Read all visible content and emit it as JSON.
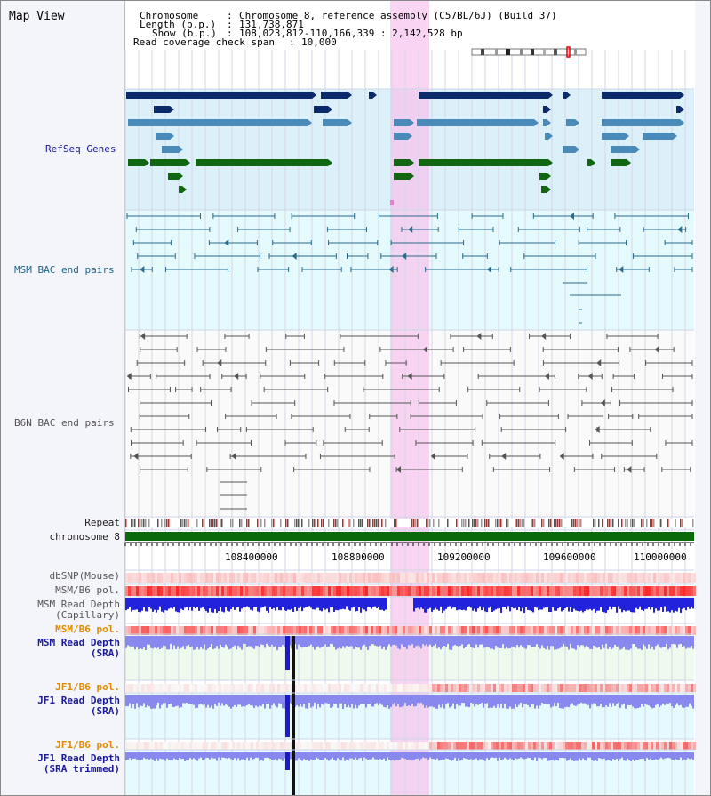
{
  "view": {
    "title": "Map View"
  },
  "header": {
    "chromosome_label": "Chromosome",
    "chromosome_value": "Chromosome 8, reference assembly (C57BL/6J) (Build 37)",
    "length_label": "Length (b.p.)",
    "length_value": "131,738,871",
    "show_label": "Show (b.p.)",
    "show_value": "108,023,812-110,166,339 : 2,142,528 bp",
    "coverage_label": "Read coverage check span",
    "coverage_value": "10,000"
  },
  "tracks": {
    "refseq": "RefSeq Genes",
    "msm_bac": "MSM BAC end pairs",
    "b6n_bac": "B6N BAC end pairs",
    "repeat": "Repeat",
    "chromosome": "chromosome 8",
    "dbsnp": "dbSNP(Mouse)",
    "msm_b6_pol": "MSM/B6 pol.",
    "msm_read_depth_cap_1": "MSM Read Depth",
    "msm_read_depth_cap_2": "(Capillary)",
    "msm_b6_pol_2": "MSM/B6 pol.",
    "msm_read_depth_sra_1": "MSM Read Depth",
    "msm_read_depth_sra_2": "(SRA)",
    "jf1_b6_pol_1": "JF1/B6 pol.",
    "jf1_read_depth_sra_1": "JF1 Read Depth",
    "jf1_read_depth_sra_2": "(SRA)",
    "jf1_b6_pol_2": "JF1/B6 pol.",
    "jf1_read_depth_trim_1": "JF1 Read Depth",
    "jf1_read_depth_trim_2": "(SRA trimmed)"
  },
  "axis": {
    "ticks": [
      "108400000",
      "108800000",
      "109200000",
      "109600000",
      "110000000"
    ]
  },
  "colors": {
    "refseq_navy": "#0a2a6a",
    "refseq_steel": "#4a8ab8",
    "refseq_green": "#116611",
    "msm_line": "#2a6a8a",
    "b6n_line": "#555555",
    "highlight": "#f7c6ef",
    "depth_blue": "#2222dd",
    "depth_sra": "#8888ee"
  }
}
